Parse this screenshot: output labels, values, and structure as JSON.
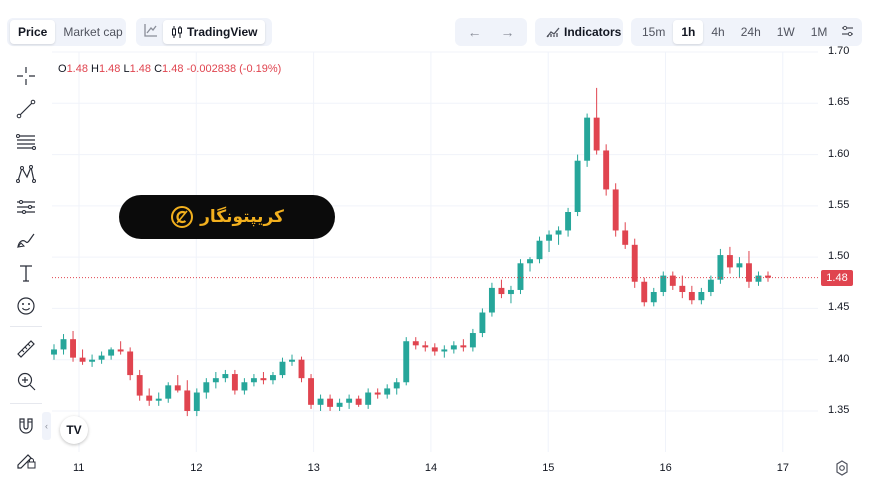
{
  "topbar": {
    "chart_type": {
      "price": "Price",
      "market_cap": "Market cap"
    },
    "tradingview": "TradingView",
    "indicators": "Indicators",
    "timeframes": [
      "15m",
      "1h",
      "4h",
      "24h",
      "1W",
      "1M"
    ],
    "active_timeframe": "1h"
  },
  "ohlc": {
    "o_label": "O",
    "o": "1.48",
    "h_label": "H",
    "h": "1.48",
    "l_label": "L",
    "l": "1.48",
    "c_label": "C",
    "c": "1.48",
    "change": "-0.002838 (-0.19%)"
  },
  "banner": {
    "text": "کریپتونگار"
  },
  "current_price": "1.48",
  "colors": {
    "up": "#26a69a",
    "down": "#e0444f",
    "accent": "#f2b01e"
  },
  "chart_data": {
    "type": "candlestick",
    "y_ticks": [
      "1.70",
      "1.65",
      "1.60",
      "1.55",
      "1.50",
      "1.45",
      "1.40",
      "1.35"
    ],
    "x_ticks": [
      "11",
      "12",
      "13",
      "14",
      "15",
      "16",
      "17"
    ],
    "ylim": [
      1.31,
      1.7
    ],
    "current_price": 1.48,
    "series": [
      [
        1.405,
        1.415,
        1.4,
        1.41
      ],
      [
        1.41,
        1.425,
        1.405,
        1.42
      ],
      [
        1.42,
        1.428,
        1.398,
        1.402
      ],
      [
        1.402,
        1.41,
        1.395,
        1.398
      ],
      [
        1.398,
        1.405,
        1.393,
        1.4
      ],
      [
        1.4,
        1.408,
        1.396,
        1.404
      ],
      [
        1.404,
        1.412,
        1.4,
        1.41
      ],
      [
        1.41,
        1.418,
        1.405,
        1.408
      ],
      [
        1.408,
        1.412,
        1.38,
        1.385
      ],
      [
        1.385,
        1.39,
        1.36,
        1.365
      ],
      [
        1.365,
        1.372,
        1.355,
        1.36
      ],
      [
        1.36,
        1.368,
        1.355,
        1.362
      ],
      [
        1.362,
        1.378,
        1.358,
        1.375
      ],
      [
        1.375,
        1.385,
        1.368,
        1.37
      ],
      [
        1.37,
        1.38,
        1.345,
        1.35
      ],
      [
        1.35,
        1.372,
        1.345,
        1.368
      ],
      [
        1.368,
        1.382,
        1.362,
        1.378
      ],
      [
        1.378,
        1.388,
        1.372,
        1.382
      ],
      [
        1.382,
        1.39,
        1.378,
        1.386
      ],
      [
        1.386,
        1.39,
        1.366,
        1.37
      ],
      [
        1.37,
        1.382,
        1.366,
        1.378
      ],
      [
        1.378,
        1.386,
        1.374,
        1.382
      ],
      [
        1.382,
        1.388,
        1.376,
        1.38
      ],
      [
        1.38,
        1.388,
        1.376,
        1.385
      ],
      [
        1.385,
        1.402,
        1.382,
        1.398
      ],
      [
        1.398,
        1.405,
        1.394,
        1.4
      ],
      [
        1.4,
        1.403,
        1.378,
        1.382
      ],
      [
        1.382,
        1.386,
        1.352,
        1.356
      ],
      [
        1.356,
        1.366,
        1.35,
        1.362
      ],
      [
        1.362,
        1.366,
        1.35,
        1.354
      ],
      [
        1.354,
        1.362,
        1.35,
        1.358
      ],
      [
        1.358,
        1.366,
        1.352,
        1.362
      ],
      [
        1.362,
        1.365,
        1.354,
        1.356
      ],
      [
        1.356,
        1.372,
        1.352,
        1.368
      ],
      [
        1.368,
        1.372,
        1.362,
        1.366
      ],
      [
        1.366,
        1.376,
        1.362,
        1.372
      ],
      [
        1.372,
        1.382,
        1.366,
        1.378
      ],
      [
        1.378,
        1.422,
        1.375,
        1.418
      ],
      [
        1.418,
        1.422,
        1.41,
        1.414
      ],
      [
        1.414,
        1.418,
        1.408,
        1.412
      ],
      [
        1.412,
        1.416,
        1.404,
        1.408
      ],
      [
        1.408,
        1.414,
        1.402,
        1.41
      ],
      [
        1.41,
        1.418,
        1.406,
        1.414
      ],
      [
        1.414,
        1.42,
        1.408,
        1.412
      ],
      [
        1.412,
        1.43,
        1.408,
        1.426
      ],
      [
        1.426,
        1.45,
        1.422,
        1.446
      ],
      [
        1.446,
        1.475,
        1.442,
        1.47
      ],
      [
        1.47,
        1.478,
        1.46,
        1.464
      ],
      [
        1.464,
        1.472,
        1.455,
        1.468
      ],
      [
        1.468,
        1.498,
        1.464,
        1.494
      ],
      [
        1.494,
        1.5,
        1.486,
        1.498
      ],
      [
        1.498,
        1.52,
        1.494,
        1.516
      ],
      [
        1.516,
        1.526,
        1.505,
        1.522
      ],
      [
        1.522,
        1.53,
        1.512,
        1.526
      ],
      [
        1.526,
        1.548,
        1.52,
        1.544
      ],
      [
        1.544,
        1.6,
        1.54,
        1.594
      ],
      [
        1.594,
        1.64,
        1.588,
        1.636
      ],
      [
        1.636,
        1.665,
        1.6,
        1.604
      ],
      [
        1.604,
        1.61,
        1.56,
        1.566
      ],
      [
        1.566,
        1.572,
        1.52,
        1.526
      ],
      [
        1.526,
        1.534,
        1.508,
        1.512
      ],
      [
        1.512,
        1.518,
        1.47,
        1.476
      ],
      [
        1.476,
        1.48,
        1.452,
        1.456
      ],
      [
        1.456,
        1.47,
        1.452,
        1.466
      ],
      [
        1.466,
        1.486,
        1.462,
        1.482
      ],
      [
        1.482,
        1.486,
        1.468,
        1.472
      ],
      [
        1.472,
        1.482,
        1.46,
        1.466
      ],
      [
        1.466,
        1.472,
        1.454,
        1.458
      ],
      [
        1.458,
        1.47,
        1.454,
        1.466
      ],
      [
        1.466,
        1.482,
        1.462,
        1.478
      ],
      [
        1.478,
        1.508,
        1.474,
        1.502
      ],
      [
        1.502,
        1.51,
        1.484,
        1.49
      ],
      [
        1.49,
        1.5,
        1.48,
        1.494
      ],
      [
        1.494,
        1.506,
        1.47,
        1.476
      ],
      [
        1.476,
        1.486,
        1.472,
        1.482
      ],
      [
        1.482,
        1.486,
        1.476,
        1.48
      ]
    ]
  }
}
